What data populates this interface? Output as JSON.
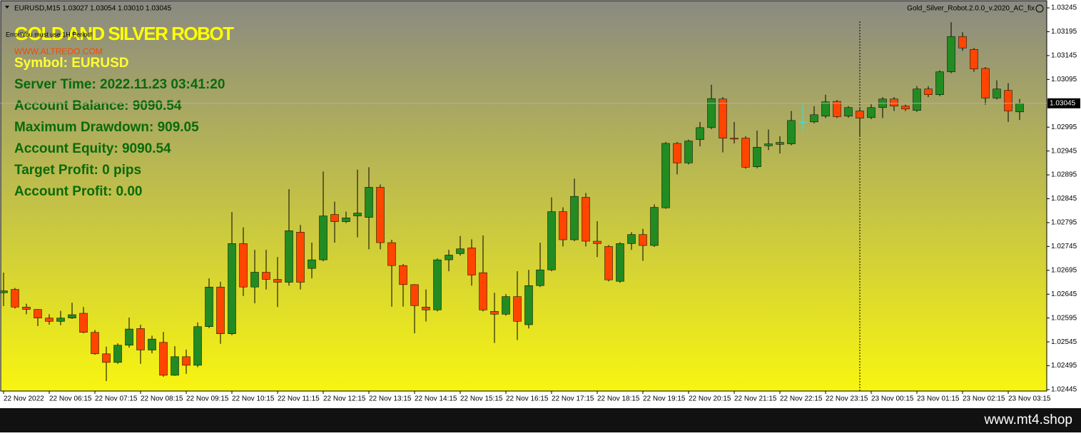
{
  "header": {
    "symbol_info": "EURUSD,M15  1.03027 1.03054 1.03010 1.03045",
    "indicator": "Gold_Silver_Robot.2.0.0_v.2020_AC_fix"
  },
  "panel": {
    "title": "GOLD AND SILVER ROBOT",
    "error": "Error!You must use 1H Period!",
    "website": "WWW.ALTREDO.COM",
    "lines": [
      "Symbol: EURUSD",
      "Server Time: 2022.11.23 03:41:20",
      "Account Balance: 9090.54",
      "Maximum Drawdown: 909.05",
      "Account Equity: 9090.54",
      "Target Profit: 0 pips",
      "Account Profit: 0.00"
    ]
  },
  "chart_data": {
    "type": "candlestick",
    "x": [
      "22 Nov 2022",
      null,
      null,
      null,
      "22 Nov 06:15",
      null,
      null,
      null,
      "22 Nov 07:15",
      null,
      null,
      null,
      "22 Nov 08:15",
      null,
      null,
      null,
      "22 Nov 09:15",
      null,
      null,
      null,
      "22 Nov 10:15",
      null,
      null,
      null,
      "22 Nov 11:15",
      null,
      null,
      null,
      "22 Nov 12:15",
      null,
      null,
      null,
      "22 Nov 13:15",
      null,
      null,
      null,
      "22 Nov 14:15",
      null,
      null,
      null,
      "22 Nov 15:15",
      null,
      null,
      null,
      "22 Nov 16:15",
      null,
      null,
      null,
      "22 Nov 17:15",
      null,
      null,
      null,
      "22 Nov 18:15",
      null,
      null,
      null,
      "22 Nov 19:15",
      null,
      null,
      null,
      "22 Nov 20:15",
      null,
      null,
      null,
      "22 Nov 21:15",
      null,
      null,
      null,
      "22 Nov 22:15",
      null,
      null,
      null,
      "22 Nov 23:15",
      null,
      null,
      null,
      "23 Nov 00:15",
      null,
      null,
      null,
      "23 Nov 01:15",
      null,
      null,
      null,
      "23 Nov 02:15",
      null,
      null,
      null,
      "23 Nov 03:15",
      null
    ],
    "open": [
      1.02648,
      1.02655,
      1.02618,
      1.02613,
      1.02595,
      1.02588,
      1.02595,
      1.02605,
      1.02565,
      1.0252,
      1.02502,
      1.02538,
      1.02573,
      1.02528,
      1.02544,
      1.02475,
      1.02514,
      1.02496,
      1.02577,
      1.0266,
      1.02562,
      1.02751,
      1.0266,
      1.02691,
      1.02676,
      1.0267,
      1.02775,
      1.02699,
      1.02717,
      1.02812,
      1.02797,
      1.02809,
      1.02806,
      1.02869,
      1.02753,
      1.02705,
      1.02665,
      1.02618,
      1.02612,
      1.02717,
      1.0273,
      1.02742,
      1.0269,
      1.02609,
      1.02603,
      1.0264,
      1.02581,
      1.02663,
      1.02696,
      1.02818,
      1.02759,
      1.02848,
      1.02756,
      1.02745,
      1.02672,
      1.02751,
      1.0277,
      1.02747,
      1.02826,
      1.02961,
      1.0292,
      1.02969,
      1.02994,
      1.03054,
      1.02972,
      1.02972,
      1.02912,
      1.02956,
      1.02959,
      1.0296,
      1.03006,
      1.03006,
      1.03018,
      1.03049,
      1.03018,
      1.03029,
      1.03015,
      1.03036,
      1.03054,
      1.03039,
      1.0303,
      1.03075,
      1.03063,
      1.03111,
      1.03185,
      1.03158,
      1.03118,
      1.03056,
      1.03072,
      1.03027
    ],
    "high": [
      1.0269,
      1.02658,
      1.02625,
      1.02614,
      1.02603,
      1.0261,
      1.02627,
      1.02618,
      1.0257,
      1.02535,
      1.02542,
      1.02596,
      1.02581,
      1.02558,
      1.02566,
      1.02536,
      1.02529,
      1.02586,
      1.02678,
      1.02671,
      1.02817,
      1.02785,
      1.02738,
      1.02738,
      1.02723,
      1.02865,
      1.0279,
      1.02753,
      1.02902,
      1.02839,
      1.02818,
      1.02906,
      1.02911,
      1.02875,
      1.02759,
      1.02708,
      1.02666,
      1.02655,
      1.0272,
      1.02738,
      1.02767,
      1.0276,
      1.02768,
      1.02648,
      1.02645,
      1.02693,
      1.02696,
      1.02753,
      1.02848,
      1.02827,
      1.02887,
      1.02857,
      1.02798,
      1.02748,
      1.02754,
      1.02775,
      1.02782,
      1.02833,
      1.02964,
      1.02964,
      1.02969,
      1.03006,
      1.03084,
      1.03058,
      1.03006,
      1.02976,
      1.02988,
      1.0299,
      1.02976,
      1.03029,
      1.03043,
      1.03039,
      1.03063,
      1.03052,
      1.03039,
      1.03036,
      1.03043,
      1.03058,
      1.03058,
      1.03042,
      1.03081,
      1.03081,
      1.03114,
      1.03215,
      1.03194,
      1.03161,
      1.03121,
      1.03093,
      1.03087,
      1.03054
    ],
    "low": [
      1.0262,
      1.02615,
      1.02603,
      1.02578,
      1.02581,
      1.0258,
      1.02593,
      1.02563,
      1.02518,
      1.02463,
      1.02499,
      1.02533,
      1.02499,
      1.02521,
      1.02472,
      1.02474,
      1.02478,
      1.02492,
      1.02574,
      1.02541,
      1.02559,
      1.02641,
      1.02626,
      1.02655,
      1.02618,
      1.02663,
      1.02655,
      1.02678,
      1.02714,
      1.02753,
      1.02794,
      1.02764,
      1.02739,
      1.02739,
      1.02619,
      1.02619,
      1.02563,
      1.02588,
      1.02609,
      1.02693,
      1.02726,
      1.02663,
      1.02609,
      1.02543,
      1.026,
      1.02549,
      1.02573,
      1.0266,
      1.02693,
      1.02745,
      1.02756,
      1.02745,
      1.02723,
      1.02672,
      1.02669,
      1.02738,
      1.02715,
      1.02744,
      1.02824,
      1.02896,
      1.02917,
      1.02955,
      1.02991,
      1.02942,
      1.02961,
      1.02908,
      1.02909,
      1.02947,
      1.0294,
      1.02957,
      1.02988,
      1.03003,
      1.03014,
      1.03014,
      1.03015,
      1.02976,
      1.03012,
      1.03014,
      1.03029,
      1.03029,
      1.03027,
      1.03058,
      1.0306,
      1.03108,
      1.03155,
      1.03111,
      1.03042,
      1.03053,
      1.03006,
      1.0301
    ],
    "close": [
      1.02652,
      1.02618,
      1.02613,
      1.02595,
      1.02588,
      1.02595,
      1.02602,
      1.02565,
      1.0252,
      1.02502,
      1.02538,
      1.02572,
      1.02528,
      1.02551,
      1.02475,
      1.02514,
      1.02496,
      1.02577,
      1.0266,
      1.02562,
      1.02751,
      1.0266,
      1.02691,
      1.02676,
      1.0267,
      1.02778,
      1.0267,
      1.02717,
      1.02809,
      1.02797,
      1.02805,
      1.02815,
      1.02869,
      1.02753,
      1.02705,
      1.02665,
      1.02621,
      1.02612,
      1.02717,
      1.02727,
      1.0274,
      1.02685,
      1.02612,
      1.02603,
      1.0264,
      1.02588,
      1.02663,
      1.02696,
      1.02818,
      1.02759,
      1.0285,
      1.02756,
      1.02751,
      1.02675,
      1.02751,
      1.0277,
      1.02747,
      1.02827,
      1.02961,
      1.0292,
      1.02966,
      1.02994,
      1.03055,
      1.02972,
      1.0297,
      1.02911,
      1.02953,
      1.0296,
      1.02963,
      1.03009,
      1.03006,
      1.03021,
      1.03048,
      1.03017,
      1.03036,
      1.03014,
      1.03036,
      1.03054,
      1.03039,
      1.03033,
      1.03075,
      1.03063,
      1.03111,
      1.03185,
      1.03161,
      1.03117,
      1.03056,
      1.03075,
      1.03029,
      1.03045
    ],
    "up_color": "#228b22",
    "down_color": "#ff4500",
    "doji_color": "#40e0d0",
    "ylim": [
      1.02442,
      1.0326
    ],
    "yticks": [
      1.02445,
      1.02495,
      1.02545,
      1.02595,
      1.02645,
      1.02695,
      1.02745,
      1.02795,
      1.02845,
      1.02895,
      1.02945,
      1.02995,
      1.03095,
      1.03145,
      1.03195,
      1.03245
    ],
    "current_price": 1.03045,
    "grid": false
  },
  "footer": "www.mt4.shop"
}
